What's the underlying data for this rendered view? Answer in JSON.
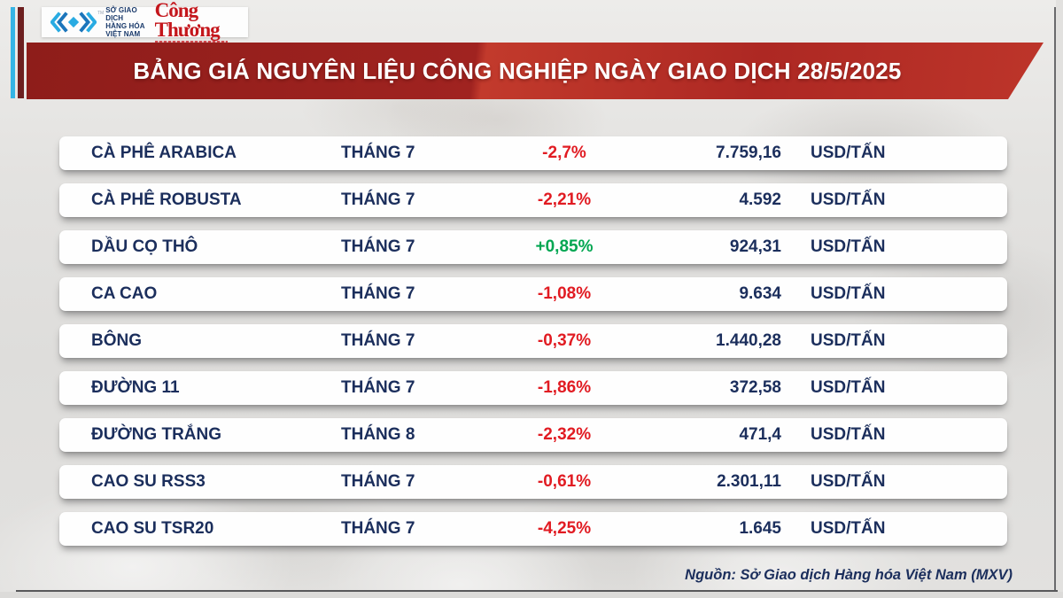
{
  "header": {
    "mxv_org_lines": [
      "SỞ GIAO DỊCH",
      "HÀNG HÓA",
      "VIỆT NAM"
    ],
    "masthead": "Công Thương",
    "title": "BẢNG GIÁ NGUYÊN LIỆU CÔNG NGHIỆP NGÀY GIAO DỊCH 28/5/2025"
  },
  "table": {
    "rows": [
      {
        "name": "CÀ PHÊ ARABICA",
        "month": "THÁNG 7",
        "change": "-2,7%",
        "direction": "down",
        "price": "7.759,16",
        "unit": "USD/TẤN"
      },
      {
        "name": "CÀ PHÊ ROBUSTA",
        "month": "THÁNG 7",
        "change": "-2,21%",
        "direction": "down",
        "price": "4.592",
        "unit": "USD/TẤN"
      },
      {
        "name": "DẦU CỌ THÔ",
        "month": "THÁNG 7",
        "change": "+0,85%",
        "direction": "up",
        "price": "924,31",
        "unit": "USD/TẤN"
      },
      {
        "name": "CA CAO",
        "month": "THÁNG 7",
        "change": "-1,08%",
        "direction": "down",
        "price": "9.634",
        "unit": "USD/TẤN"
      },
      {
        "name": "BÔNG",
        "month": "THÁNG 7",
        "change": "-0,37%",
        "direction": "down",
        "price": "1.440,28",
        "unit": "USD/TẤN"
      },
      {
        "name": "ĐƯỜNG 11",
        "month": "THÁNG 7",
        "change": "-1,86%",
        "direction": "down",
        "price": "372,58",
        "unit": "USD/TẤN"
      },
      {
        "name": "ĐƯỜNG TRẮNG",
        "month": "THÁNG 8",
        "change": "-2,32%",
        "direction": "down",
        "price": "471,4",
        "unit": "USD/TẤN"
      },
      {
        "name": "CAO SU RSS3",
        "month": "THÁNG 7",
        "change": "-0,61%",
        "direction": "down",
        "price": "2.301,11",
        "unit": "USD/TẤN"
      },
      {
        "name": "CAO SU TSR20",
        "month": "THÁNG 7",
        "change": "-4,25%",
        "direction": "down",
        "price": "1.645",
        "unit": "USD/TẤN"
      }
    ]
  },
  "footer": {
    "source": "Nguồn: Sở Giao dịch Hàng hóa Việt Nam (MXV)"
  },
  "colors": {
    "up": "#00a651",
    "down": "#e11b22",
    "navy": "#1b2e5c",
    "banner_red": "#b02a23",
    "accent_cyan": "#35b4e5",
    "accent_maroon": "#6d1f1f"
  },
  "chart_data": {
    "type": "table",
    "title": "BẢNG GIÁ NGUYÊN LIỆU CÔNG NGHIỆP NGÀY GIAO DỊCH 28/5/2025",
    "rows": [
      {
        "name": "CÀ PHÊ ARABICA",
        "month": "THÁNG 7",
        "change_pct": -2.7,
        "price": 7759.16,
        "unit": "USD/TẤN"
      },
      {
        "name": "CÀ PHÊ ROBUSTA",
        "month": "THÁNG 7",
        "change_pct": -2.21,
        "price": 4592,
        "unit": "USD/TẤN"
      },
      {
        "name": "DẦU CỌ THÔ",
        "month": "THÁNG 7",
        "change_pct": 0.85,
        "price": 924.31,
        "unit": "USD/TẤN"
      },
      {
        "name": "CA CAO",
        "month": "THÁNG 7",
        "change_pct": -1.08,
        "price": 9634,
        "unit": "USD/TẤN"
      },
      {
        "name": "BÔNG",
        "month": "THÁNG 7",
        "change_pct": -0.37,
        "price": 1440.28,
        "unit": "USD/TẤN"
      },
      {
        "name": "ĐƯỜNG 11",
        "month": "THÁNG 7",
        "change_pct": -1.86,
        "price": 372.58,
        "unit": "USD/TẤN"
      },
      {
        "name": "ĐƯỜNG TRẮNG",
        "month": "THÁNG 8",
        "change_pct": -2.32,
        "price": 471.4,
        "unit": "USD/TẤN"
      },
      {
        "name": "CAO SU RSS3",
        "month": "THÁNG 7",
        "change_pct": -0.61,
        "price": 2301.11,
        "unit": "USD/TẤN"
      },
      {
        "name": "CAO SU TSR20",
        "month": "THÁNG 7",
        "change_pct": -4.25,
        "price": 1645,
        "unit": "USD/TẤN"
      }
    ],
    "source": "Nguồn: Sở Giao dịch Hàng hóa Việt Nam (MXV)"
  }
}
